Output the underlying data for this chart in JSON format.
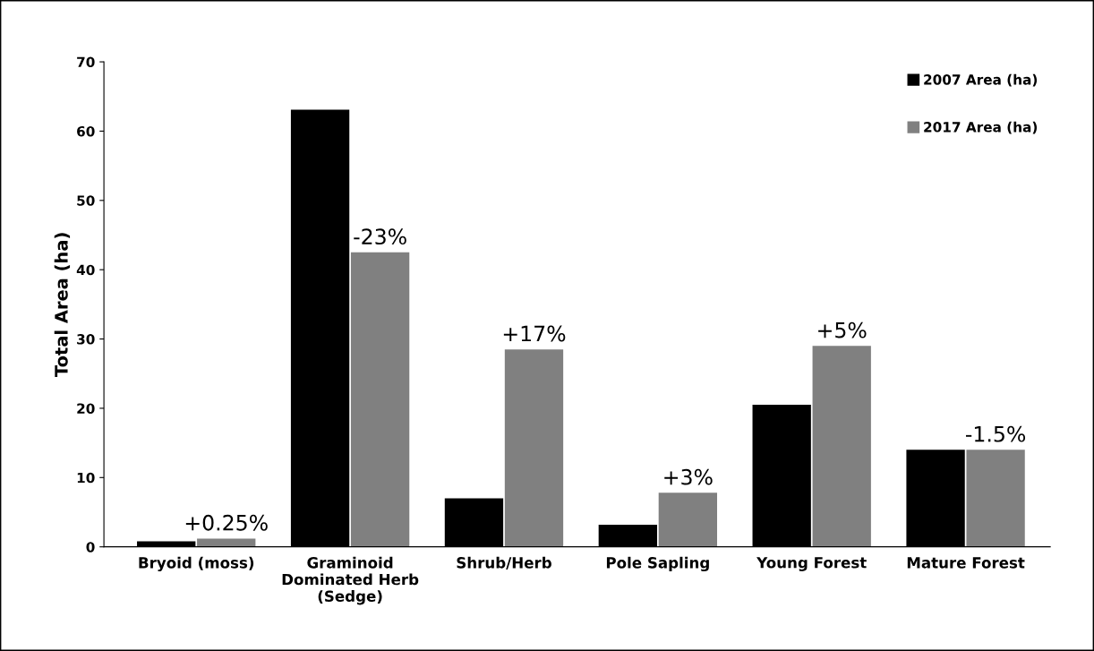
{
  "chart_data": {
    "type": "bar",
    "ylabel": "Total Area (ha)",
    "categories": [
      "Bryoid (moss)",
      "Graminoid\nDominated Herb\n(Sedge)",
      "Shrub/Herb",
      "Pole Sapling",
      "Young Forest",
      "Mature Forest"
    ],
    "series": [
      {
        "name": "2007 Area (ha)",
        "color": "#000000",
        "values": [
          0.8,
          63.1,
          7.0,
          3.2,
          20.5,
          14.0
        ]
      },
      {
        "name": "2017 Area (ha)",
        "color": "#808080",
        "values": [
          1.2,
          42.5,
          28.5,
          7.8,
          29.0,
          14.0
        ]
      }
    ],
    "annotations": [
      {
        "text": "+0.25%",
        "x": "Bryoid (moss)",
        "y": 1.2
      },
      {
        "text": "-23%",
        "x": "Graminoid\nDominated Herb\n(Sedge)",
        "y": 42.5
      },
      {
        "text": "+17%",
        "x": "Shrub/Herb",
        "y": 28.5
      },
      {
        "text": "+3%",
        "x": "Pole Sapling",
        "y": 7.8
      },
      {
        "text": "+5%",
        "x": "Young Forest",
        "y": 29.0
      },
      {
        "text": "-1.5%",
        "x": "Mature Forest",
        "y": 14.0
      }
    ],
    "ylim": [
      0,
      70
    ],
    "yticks": [
      0,
      10,
      20,
      30,
      40,
      50,
      60,
      70
    ],
    "grid": false,
    "legend": "top right"
  }
}
